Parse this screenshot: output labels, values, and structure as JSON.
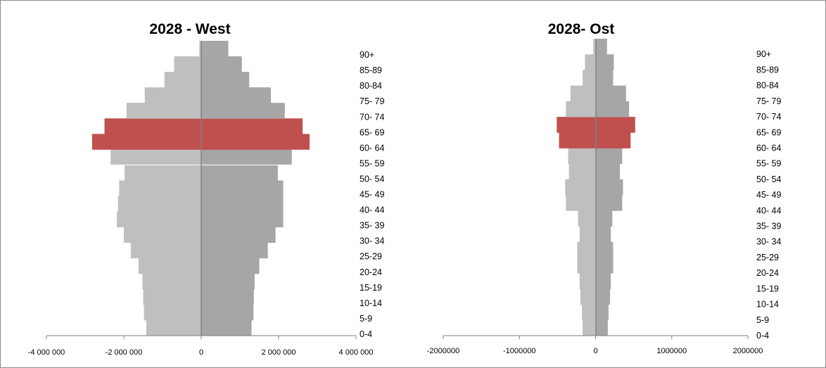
{
  "chart_data": [
    {
      "type": "bar",
      "orientation": "horizontal",
      "stacked": "diverging",
      "title": "2028 - West",
      "categories": [
        "0-4",
        "5-9",
        "10-14",
        "15-19",
        "20-24",
        "25-29",
        "30- 34",
        "35- 39",
        "40- 44",
        "45- 49",
        "50- 54",
        "55- 59",
        "60- 64",
        "65- 69",
        "70- 74",
        "75- 79",
        "80-84",
        "85-89",
        "90+"
      ],
      "series": [
        {
          "color": "#bfbfbf",
          "values": [
            -1420000,
            -1480000,
            -1500000,
            -1520000,
            -1620000,
            -1820000,
            -2000000,
            -2180000,
            -2150000,
            -2120000,
            -1980000,
            -2340000,
            -2820000,
            -2500000,
            -1930000,
            -1460000,
            -950000,
            -700000,
            -50000
          ]
        },
        {
          "color": "#a6a6a6",
          "values": [
            1300000,
            1350000,
            1360000,
            1380000,
            1500000,
            1720000,
            1920000,
            2120000,
            2120000,
            2120000,
            1980000,
            2340000,
            2800000,
            2620000,
            2160000,
            1800000,
            1240000,
            1050000,
            700000
          ]
        }
      ],
      "highlight": {
        "categories": [
          "60- 64",
          "65- 69"
        ],
        "color": "#c0504d"
      },
      "xticks": [
        -4000000,
        -2000000,
        0,
        2000000,
        4000000
      ],
      "xtick_labels": [
        "-4 000 000",
        "-2 000 000",
        "0",
        "2 000 000",
        "4 000 000"
      ],
      "xlim": [
        -4000000,
        4000000
      ],
      "bar_colors": {
        "left": "#bfbfbf",
        "right": "#a6a6a6"
      }
    },
    {
      "type": "bar",
      "orientation": "horizontal",
      "stacked": "diverging",
      "title": "2028- Ost",
      "categories": [
        "0-4",
        "5-9",
        "10-14",
        "15-19",
        "20-24",
        "25-29",
        "30- 34",
        "35- 39",
        "40- 44",
        "45- 49",
        "50- 54",
        "55- 59",
        "60- 64",
        "65- 69",
        "70- 74",
        "75- 79",
        "80-84",
        "85-89",
        "90+"
      ],
      "series": [
        {
          "color": "#bfbfbf",
          "values": [
            -170000,
            -180000,
            -200000,
            -210000,
            -240000,
            -240000,
            -210000,
            -230000,
            -390000,
            -400000,
            -350000,
            -360000,
            -480000,
            -510000,
            -390000,
            -330000,
            -170000,
            -140000,
            -30000
          ]
        },
        {
          "color": "#a6a6a6",
          "values": [
            160000,
            170000,
            190000,
            200000,
            230000,
            230000,
            200000,
            220000,
            350000,
            360000,
            320000,
            350000,
            460000,
            520000,
            440000,
            400000,
            230000,
            240000,
            150000
          ]
        }
      ],
      "highlight": {
        "categories": [
          "60- 64",
          "65- 69"
        ],
        "color": "#c0504d"
      },
      "xticks": [
        -2000000,
        -1000000,
        0,
        1000000,
        2000000
      ],
      "xtick_labels": [
        "-2000000",
        "-1000000",
        "0",
        "1000000",
        "2000000"
      ],
      "xlim": [
        -2000000,
        2000000
      ],
      "bar_colors": {
        "left": "#bfbfbf",
        "right": "#a6a6a6"
      }
    }
  ]
}
